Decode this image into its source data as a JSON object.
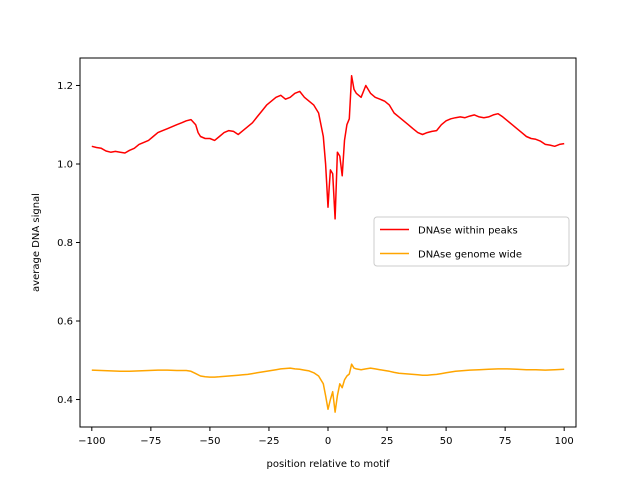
{
  "chart_data": {
    "type": "line",
    "title": "",
    "xlabel": "position relative to motif",
    "ylabel": "average DNA signal",
    "xlim": [
      -105,
      105
    ],
    "ylim": [
      0.33,
      1.27
    ],
    "x_ticks": [
      -100,
      -75,
      -50,
      -25,
      0,
      25,
      50,
      75,
      100
    ],
    "y_ticks": [
      0.4,
      0.6,
      0.8,
      1.0,
      1.2
    ],
    "x_tick_labels": [
      "−100",
      "−75",
      "−50",
      "−25",
      "0",
      "25",
      "50",
      "75",
      "100"
    ],
    "y_tick_labels": [
      "0.4",
      "0.6",
      "0.8",
      "1.0",
      "1.2"
    ],
    "grid": false,
    "legend_position": "center-right",
    "series": [
      {
        "name": "DNAse within peaks",
        "color": "#ff0000",
        "points": [
          [
            -100,
            1.045
          ],
          [
            -98,
            1.042
          ],
          [
            -96,
            1.04
          ],
          [
            -94,
            1.033
          ],
          [
            -92,
            1.03
          ],
          [
            -90,
            1.032
          ],
          [
            -88,
            1.03
          ],
          [
            -86,
            1.028
          ],
          [
            -84,
            1.035
          ],
          [
            -82,
            1.04
          ],
          [
            -80,
            1.05
          ],
          [
            -78,
            1.055
          ],
          [
            -76,
            1.06
          ],
          [
            -74,
            1.07
          ],
          [
            -72,
            1.08
          ],
          [
            -70,
            1.085
          ],
          [
            -68,
            1.09
          ],
          [
            -66,
            1.095
          ],
          [
            -64,
            1.1
          ],
          [
            -62,
            1.105
          ],
          [
            -60,
            1.11
          ],
          [
            -58,
            1.113
          ],
          [
            -56,
            1.1
          ],
          [
            -55,
            1.08
          ],
          [
            -54,
            1.07
          ],
          [
            -52,
            1.065
          ],
          [
            -50,
            1.065
          ],
          [
            -48,
            1.06
          ],
          [
            -46,
            1.07
          ],
          [
            -44,
            1.08
          ],
          [
            -42,
            1.085
          ],
          [
            -40,
            1.083
          ],
          [
            -38,
            1.075
          ],
          [
            -36,
            1.085
          ],
          [
            -34,
            1.095
          ],
          [
            -32,
            1.105
          ],
          [
            -30,
            1.12
          ],
          [
            -28,
            1.135
          ],
          [
            -26,
            1.15
          ],
          [
            -24,
            1.16
          ],
          [
            -22,
            1.17
          ],
          [
            -20,
            1.175
          ],
          [
            -18,
            1.165
          ],
          [
            -16,
            1.17
          ],
          [
            -14,
            1.18
          ],
          [
            -12,
            1.185
          ],
          [
            -10,
            1.17
          ],
          [
            -8,
            1.16
          ],
          [
            -6,
            1.15
          ],
          [
            -4,
            1.13
          ],
          [
            -2,
            1.07
          ],
          [
            -1,
            1.0
          ],
          [
            0,
            0.89
          ],
          [
            0.5,
            0.94
          ],
          [
            1,
            0.985
          ],
          [
            2,
            0.975
          ],
          [
            3,
            0.86
          ],
          [
            4,
            1.03
          ],
          [
            5,
            1.02
          ],
          [
            6,
            0.97
          ],
          [
            7,
            1.06
          ],
          [
            8,
            1.1
          ],
          [
            9,
            1.115
          ],
          [
            10,
            1.225
          ],
          [
            11,
            1.19
          ],
          [
            12,
            1.18
          ],
          [
            14,
            1.17
          ],
          [
            16,
            1.2
          ],
          [
            18,
            1.18
          ],
          [
            20,
            1.17
          ],
          [
            22,
            1.165
          ],
          [
            24,
            1.16
          ],
          [
            26,
            1.15
          ],
          [
            28,
            1.13
          ],
          [
            30,
            1.12
          ],
          [
            32,
            1.11
          ],
          [
            34,
            1.1
          ],
          [
            36,
            1.09
          ],
          [
            38,
            1.08
          ],
          [
            40,
            1.075
          ],
          [
            42,
            1.08
          ],
          [
            44,
            1.083
          ],
          [
            46,
            1.085
          ],
          [
            48,
            1.1
          ],
          [
            50,
            1.11
          ],
          [
            52,
            1.115
          ],
          [
            54,
            1.118
          ],
          [
            56,
            1.12
          ],
          [
            58,
            1.118
          ],
          [
            60,
            1.122
          ],
          [
            62,
            1.125
          ],
          [
            64,
            1.12
          ],
          [
            66,
            1.118
          ],
          [
            68,
            1.12
          ],
          [
            70,
            1.125
          ],
          [
            72,
            1.128
          ],
          [
            74,
            1.12
          ],
          [
            76,
            1.11
          ],
          [
            78,
            1.1
          ],
          [
            80,
            1.09
          ],
          [
            82,
            1.08
          ],
          [
            84,
            1.07
          ],
          [
            86,
            1.065
          ],
          [
            88,
            1.063
          ],
          [
            90,
            1.058
          ],
          [
            92,
            1.05
          ],
          [
            94,
            1.048
          ],
          [
            96,
            1.045
          ],
          [
            98,
            1.05
          ],
          [
            100,
            1.052
          ]
        ]
      },
      {
        "name": "DNAse genome wide",
        "color": "#ffa500",
        "points": [
          [
            -100,
            0.475
          ],
          [
            -96,
            0.474
          ],
          [
            -92,
            0.473
          ],
          [
            -88,
            0.472
          ],
          [
            -84,
            0.472
          ],
          [
            -80,
            0.473
          ],
          [
            -76,
            0.474
          ],
          [
            -72,
            0.475
          ],
          [
            -68,
            0.475
          ],
          [
            -64,
            0.474
          ],
          [
            -60,
            0.474
          ],
          [
            -58,
            0.472
          ],
          [
            -56,
            0.466
          ],
          [
            -54,
            0.46
          ],
          [
            -52,
            0.458
          ],
          [
            -50,
            0.457
          ],
          [
            -48,
            0.457
          ],
          [
            -46,
            0.458
          ],
          [
            -44,
            0.459
          ],
          [
            -42,
            0.46
          ],
          [
            -40,
            0.461
          ],
          [
            -38,
            0.462
          ],
          [
            -36,
            0.463
          ],
          [
            -34,
            0.464
          ],
          [
            -32,
            0.466
          ],
          [
            -30,
            0.468
          ],
          [
            -28,
            0.47
          ],
          [
            -26,
            0.472
          ],
          [
            -24,
            0.474
          ],
          [
            -22,
            0.476
          ],
          [
            -20,
            0.478
          ],
          [
            -18,
            0.479
          ],
          [
            -16,
            0.48
          ],
          [
            -14,
            0.478
          ],
          [
            -12,
            0.477
          ],
          [
            -10,
            0.475
          ],
          [
            -8,
            0.473
          ],
          [
            -6,
            0.468
          ],
          [
            -4,
            0.46
          ],
          [
            -2,
            0.44
          ],
          [
            -1,
            0.41
          ],
          [
            0,
            0.375
          ],
          [
            1,
            0.4
          ],
          [
            2,
            0.42
          ],
          [
            3,
            0.368
          ],
          [
            4,
            0.41
          ],
          [
            5,
            0.44
          ],
          [
            6,
            0.43
          ],
          [
            7,
            0.45
          ],
          [
            8,
            0.46
          ],
          [
            9,
            0.465
          ],
          [
            10,
            0.49
          ],
          [
            11,
            0.48
          ],
          [
            12,
            0.478
          ],
          [
            14,
            0.476
          ],
          [
            16,
            0.478
          ],
          [
            18,
            0.48
          ],
          [
            20,
            0.478
          ],
          [
            22,
            0.476
          ],
          [
            24,
            0.474
          ],
          [
            26,
            0.472
          ],
          [
            28,
            0.469
          ],
          [
            30,
            0.467
          ],
          [
            32,
            0.466
          ],
          [
            34,
            0.465
          ],
          [
            36,
            0.464
          ],
          [
            38,
            0.463
          ],
          [
            40,
            0.462
          ],
          [
            42,
            0.462
          ],
          [
            44,
            0.463
          ],
          [
            46,
            0.464
          ],
          [
            48,
            0.466
          ],
          [
            50,
            0.468
          ],
          [
            52,
            0.47
          ],
          [
            54,
            0.472
          ],
          [
            56,
            0.473
          ],
          [
            58,
            0.474
          ],
          [
            60,
            0.475
          ],
          [
            64,
            0.476
          ],
          [
            68,
            0.477
          ],
          [
            72,
            0.478
          ],
          [
            76,
            0.478
          ],
          [
            80,
            0.477
          ],
          [
            84,
            0.476
          ],
          [
            88,
            0.476
          ],
          [
            92,
            0.475
          ],
          [
            96,
            0.476
          ],
          [
            100,
            0.477
          ]
        ]
      }
    ]
  }
}
